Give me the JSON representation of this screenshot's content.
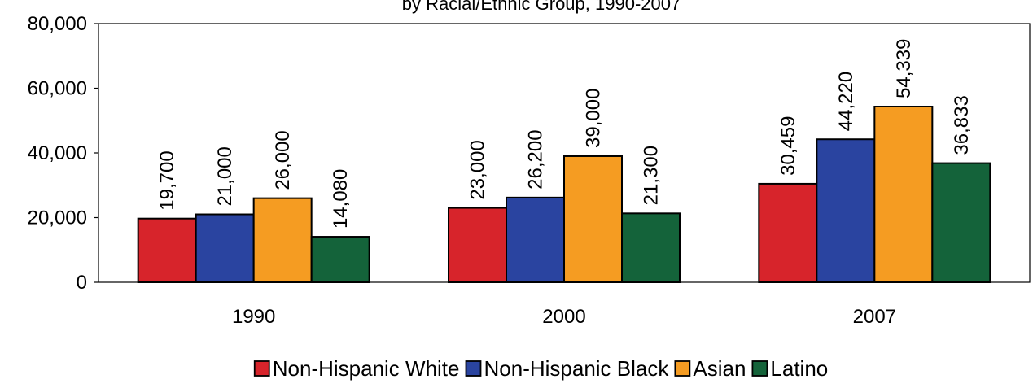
{
  "chart_data": {
    "type": "bar",
    "title": "by Racial/Ethnic Group, 1990-2007",
    "xlabel": "",
    "ylabel": "",
    "categories": [
      "1990",
      "2000",
      "2007"
    ],
    "series": [
      {
        "name": "Non-Hispanic White",
        "color": "#d7242b",
        "values": [
          19700,
          23000,
          30459
        ],
        "labels": [
          "19,700",
          "23,000",
          "30,459"
        ]
      },
      {
        "name": "Non-Hispanic Black",
        "color": "#2a44a0",
        "values": [
          21000,
          26200,
          44220
        ],
        "labels": [
          "21,000",
          "26,200",
          "44,220"
        ]
      },
      {
        "name": "Asian",
        "color": "#f59c22",
        "values": [
          26000,
          39000,
          54339
        ],
        "labels": [
          "26,000",
          "39,000",
          "54,339"
        ]
      },
      {
        "name": "Latino",
        "color": "#14633a",
        "values": [
          14080,
          21300,
          36833
        ],
        "labels": [
          "14,080",
          "21,300",
          "36,833"
        ]
      }
    ],
    "ylim": [
      0,
      80000
    ],
    "yticks": [
      {
        "value": 0,
        "label": "0"
      },
      {
        "value": 20000,
        "label": "20,000"
      },
      {
        "value": 40000,
        "label": "40,000"
      },
      {
        "value": 60000,
        "label": "60,000"
      },
      {
        "value": 80000,
        "label": "80,000"
      }
    ],
    "grid": false,
    "legend": "bottom-center"
  }
}
